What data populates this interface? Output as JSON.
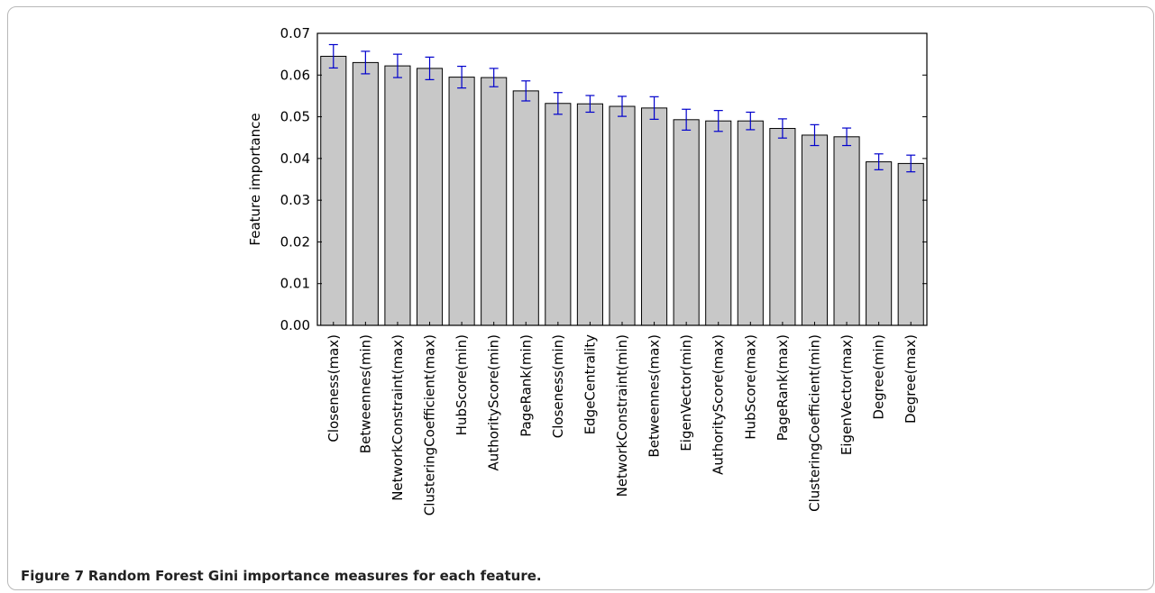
{
  "caption": {
    "label": "Figure 7",
    "text": "Random Forest Gini importance measures for each feature."
  },
  "chart_data": {
    "type": "bar",
    "title": "",
    "xlabel": "",
    "ylabel": "Feature importance",
    "ylim": [
      0,
      0.07
    ],
    "yticks": [
      "0.00",
      "0.01",
      "0.02",
      "0.03",
      "0.04",
      "0.05",
      "0.06",
      "0.07"
    ],
    "grid": false,
    "bar_color": "#c8c8c8",
    "error_bar_color": "#0000cc",
    "categories": [
      "Closeness(max)",
      "Betweennes(min)",
      "NetworkConstraint(max)",
      "ClusteringCoefficient(max)",
      "HubScore(min)",
      "AuthorityScore(min)",
      "PageRank(min)",
      "Closeness(min)",
      "EdgeCentrality",
      "NetworkConstraint(min)",
      "Betweennes(max)",
      "EigenVector(min)",
      "AuthorityScore(max)",
      "HubScore(max)",
      "PageRank(max)",
      "ClusteringCoefficient(min)",
      "EigenVector(max)",
      "Degree(min)",
      "Degree(max)"
    ],
    "values": [
      0.0645,
      0.063,
      0.0622,
      0.0616,
      0.0595,
      0.0594,
      0.0562,
      0.0532,
      0.0531,
      0.0525,
      0.0521,
      0.0493,
      0.049,
      0.049,
      0.0472,
      0.0456,
      0.0452,
      0.0392,
      0.0388
    ],
    "errors": [
      0.0028,
      0.0027,
      0.0028,
      0.0027,
      0.0026,
      0.0022,
      0.0024,
      0.0026,
      0.002,
      0.0024,
      0.0027,
      0.0025,
      0.0025,
      0.0021,
      0.0023,
      0.0025,
      0.0021,
      0.0019,
      0.002
    ]
  }
}
